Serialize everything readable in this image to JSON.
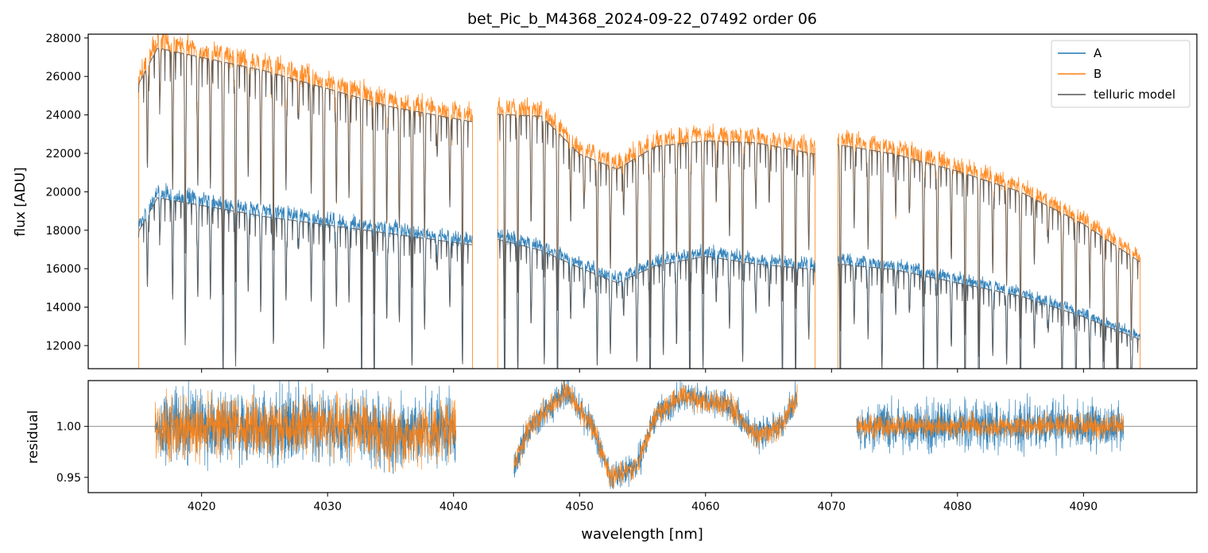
{
  "chart_data": {
    "type": "line",
    "title": "bet_Pic_b_M4368_2024-09-22_07492  order 06",
    "xlabel": "wavelength [nm]",
    "xlim": [
      4011,
      4099
    ],
    "x_ticks": [
      4020,
      4030,
      4040,
      4050,
      4060,
      4070,
      4080,
      4090
    ],
    "x_tick_labels": [
      "4020",
      "4030",
      "4040",
      "4050",
      "4060",
      "4070",
      "4080",
      "4090"
    ],
    "colors": {
      "A": "#1f77b4",
      "B": "#ff7f0e",
      "telluric": "#555555",
      "refline": "#808080"
    },
    "top_panel": {
      "ylabel": "flux [ADU]",
      "ylim": [
        10800,
        28200
      ],
      "y_ticks": [
        12000,
        14000,
        16000,
        18000,
        20000,
        22000,
        24000,
        26000,
        28000
      ],
      "y_tick_labels": [
        "12000",
        "14000",
        "16000",
        "18000",
        "20000",
        "22000",
        "24000",
        "26000",
        "28000"
      ],
      "legend": {
        "position": "top-right",
        "entries": [
          {
            "label": "A",
            "color": "#1f77b4"
          },
          {
            "label": "B",
            "color": "#ff7f0e"
          },
          {
            "label": "telluric model",
            "color": "#555555"
          }
        ]
      },
      "segments": [
        {
          "x_range": [
            4015.0,
            4041.5
          ],
          "A_continuum": [
            [
              4015.0,
              18200
            ],
            [
              4016.5,
              20000
            ],
            [
              4025,
              19000
            ],
            [
              4035,
              18100
            ],
            [
              4041.5,
              17500
            ]
          ],
          "B_continuum": [
            [
              4015.0,
              26000
            ],
            [
              4016.5,
              27900
            ],
            [
              4025,
              26700
            ],
            [
              4035,
              24800
            ],
            [
              4041.5,
              24000
            ]
          ]
        },
        {
          "x_range": [
            4043.5,
            4068.7
          ],
          "A_continuum": [
            [
              4043.5,
              17800
            ],
            [
              4047,
              17200
            ],
            [
              4050,
              16300
            ],
            [
              4053,
              15500
            ],
            [
              4056,
              16400
            ],
            [
              4060,
              16900
            ],
            [
              4064,
              16500
            ],
            [
              4068.7,
              16200
            ]
          ],
          "B_continuum": [
            [
              4043.5,
              24400
            ],
            [
              4047,
              24300
            ],
            [
              4050,
              22300
            ],
            [
              4053,
              21500
            ],
            [
              4056,
              22700
            ],
            [
              4060,
              23000
            ],
            [
              4064,
              22900
            ],
            [
              4068.7,
              22300
            ]
          ]
        },
        {
          "x_range": [
            4070.5,
            4094.5
          ],
          "A_continuum": [
            [
              4070.5,
              16500
            ],
            [
              4075,
              16200
            ],
            [
              4080,
              15500
            ],
            [
              4085,
              14800
            ],
            [
              4090,
              13700
            ],
            [
              4094.5,
              12500
            ]
          ],
          "B_continuum": [
            [
              4070.5,
              22800
            ],
            [
              4075,
              22300
            ],
            [
              4080,
              21400
            ],
            [
              4085,
              20300
            ],
            [
              4090,
              18600
            ],
            [
              4094.5,
              16600
            ]
          ]
        }
      ]
    },
    "bottom_panel": {
      "ylabel": "residual",
      "ylim": [
        0.935,
        1.045
      ],
      "y_ticks": [
        0.95,
        1.0
      ],
      "y_tick_labels": [
        "0.95",
        "1.00"
      ],
      "reference_line": 1.0,
      "segments": [
        {
          "x_range": [
            4016.3,
            4040.2
          ],
          "trend": [
            [
              4016.3,
              1.0
            ],
            [
              4025,
              1.0
            ],
            [
              4033,
              1.0
            ],
            [
              4035,
              0.99
            ],
            [
              4040.2,
              1.0
            ]
          ],
          "noise_A": 0.03,
          "noise_B": 0.025
        },
        {
          "x_range": [
            4044.8,
            4067.3
          ],
          "trend": [
            [
              4044.8,
              0.96
            ],
            [
              4046,
              1.0
            ],
            [
              4049,
              1.035
            ],
            [
              4051,
              1.0
            ],
            [
              4052.5,
              0.95
            ],
            [
              4054.5,
              0.96
            ],
            [
              4056,
              1.01
            ],
            [
              4058,
              1.03
            ],
            [
              4062,
              1.02
            ],
            [
              4064,
              0.99
            ],
            [
              4066,
              1.0
            ],
            [
              4067.3,
              1.03
            ]
          ],
          "noise_A": 0.012,
          "noise_B": 0.01
        },
        {
          "x_range": [
            4072.0,
            4093.2
          ],
          "trend": [
            [
              4072.0,
              1.0
            ],
            [
              4093.2,
              1.0
            ]
          ],
          "noise_A": 0.02,
          "noise_B": 0.01
        }
      ]
    }
  }
}
